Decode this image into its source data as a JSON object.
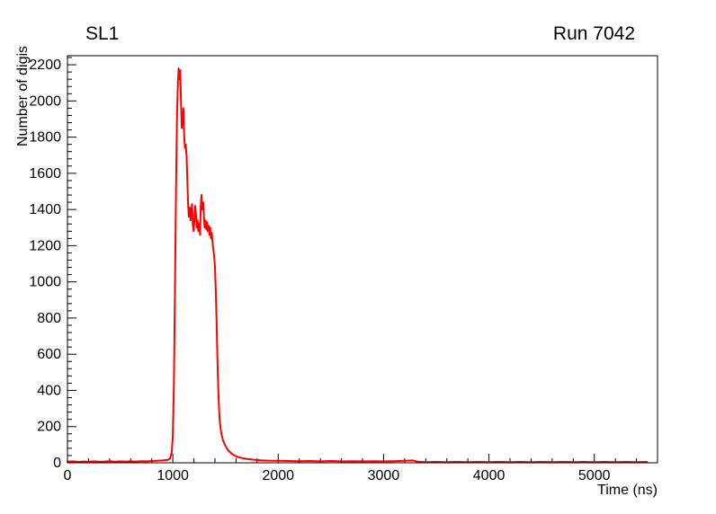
{
  "header": {
    "title_left": "SL1",
    "title_right": "Run 7042"
  },
  "chart_data": {
    "type": "line",
    "title": "SL1",
    "annotation": "Run 7042",
    "xlabel": "Time (ns)",
    "ylabel": "Number of digis",
    "xlim": [
      0,
      5600
    ],
    "ylim": [
      0,
      2250
    ],
    "x_major_ticks": [
      0,
      1000,
      2000,
      3000,
      4000,
      5000
    ],
    "x_minor_step": 200,
    "y_major_ticks": [
      0,
      200,
      400,
      600,
      800,
      1000,
      1200,
      1400,
      1600,
      1800,
      2000,
      2200
    ],
    "y_minor_step": 40,
    "line_color": "#ff0000",
    "grid": false,
    "legend": "none",
    "points": [
      [
        0,
        6
      ],
      [
        50,
        8
      ],
      [
        100,
        5
      ],
      [
        150,
        7
      ],
      [
        200,
        6
      ],
      [
        250,
        8
      ],
      [
        300,
        6
      ],
      [
        350,
        7
      ],
      [
        400,
        9
      ],
      [
        450,
        6
      ],
      [
        500,
        8
      ],
      [
        550,
        7
      ],
      [
        600,
        8
      ],
      [
        650,
        7
      ],
      [
        700,
        9
      ],
      [
        750,
        8
      ],
      [
        800,
        10
      ],
      [
        850,
        11
      ],
      [
        900,
        13
      ],
      [
        950,
        16
      ],
      [
        975,
        25
      ],
      [
        990,
        60
      ],
      [
        1000,
        150
      ],
      [
        1010,
        420
      ],
      [
        1020,
        950
      ],
      [
        1030,
        1520
      ],
      [
        1040,
        1920
      ],
      [
        1048,
        2100
      ],
      [
        1055,
        2180
      ],
      [
        1062,
        2120
      ],
      [
        1070,
        2170
      ],
      [
        1078,
        1980
      ],
      [
        1085,
        1850
      ],
      [
        1092,
        1900
      ],
      [
        1100,
        1960
      ],
      [
        1108,
        1800
      ],
      [
        1115,
        1740
      ],
      [
        1122,
        1760
      ],
      [
        1130,
        1700
      ],
      [
        1138,
        1560
      ],
      [
        1145,
        1430
      ],
      [
        1152,
        1360
      ],
      [
        1160,
        1410
      ],
      [
        1168,
        1340
      ],
      [
        1175,
        1390
      ],
      [
        1182,
        1430
      ],
      [
        1190,
        1310
      ],
      [
        1198,
        1280
      ],
      [
        1205,
        1350
      ],
      [
        1212,
        1420
      ],
      [
        1220,
        1370
      ],
      [
        1228,
        1300
      ],
      [
        1235,
        1340
      ],
      [
        1242,
        1280
      ],
      [
        1250,
        1320
      ],
      [
        1258,
        1260
      ],
      [
        1265,
        1420
      ],
      [
        1272,
        1480
      ],
      [
        1280,
        1400
      ],
      [
        1288,
        1440
      ],
      [
        1295,
        1360
      ],
      [
        1302,
        1300
      ],
      [
        1310,
        1340
      ],
      [
        1318,
        1290
      ],
      [
        1325,
        1330
      ],
      [
        1332,
        1280
      ],
      [
        1340,
        1310
      ],
      [
        1348,
        1260
      ],
      [
        1355,
        1300
      ],
      [
        1362,
        1240
      ],
      [
        1370,
        1270
      ],
      [
        1378,
        1210
      ],
      [
        1385,
        1180
      ],
      [
        1392,
        1140
      ],
      [
        1400,
        1080
      ],
      [
        1408,
        950
      ],
      [
        1415,
        780
      ],
      [
        1422,
        600
      ],
      [
        1430,
        430
      ],
      [
        1438,
        300
      ],
      [
        1445,
        230
      ],
      [
        1455,
        185
      ],
      [
        1465,
        150
      ],
      [
        1475,
        125
      ],
      [
        1490,
        105
      ],
      [
        1505,
        88
      ],
      [
        1520,
        72
      ],
      [
        1540,
        60
      ],
      [
        1560,
        50
      ],
      [
        1580,
        42
      ],
      [
        1600,
        36
      ],
      [
        1630,
        30
      ],
      [
        1660,
        26
      ],
      [
        1700,
        22
      ],
      [
        1750,
        18
      ],
      [
        1800,
        15
      ],
      [
        1850,
        13
      ],
      [
        1900,
        12
      ],
      [
        1950,
        11
      ],
      [
        2000,
        11
      ],
      [
        2100,
        10
      ],
      [
        2200,
        9
      ],
      [
        2300,
        10
      ],
      [
        2400,
        8
      ],
      [
        2500,
        10
      ],
      [
        2600,
        8
      ],
      [
        2700,
        9
      ],
      [
        2800,
        8
      ],
      [
        2900,
        9
      ],
      [
        3000,
        8
      ],
      [
        3100,
        9
      ],
      [
        3200,
        11
      ],
      [
        3280,
        13
      ],
      [
        3320,
        6
      ],
      [
        3400,
        4
      ],
      [
        3500,
        5
      ],
      [
        3600,
        4
      ],
      [
        3700,
        5
      ],
      [
        3800,
        4
      ],
      [
        3900,
        5
      ],
      [
        4000,
        4
      ],
      [
        4100,
        5
      ],
      [
        4200,
        4
      ],
      [
        4300,
        5
      ],
      [
        4400,
        4
      ],
      [
        4500,
        5
      ],
      [
        4600,
        4
      ],
      [
        4700,
        5
      ],
      [
        4800,
        4
      ],
      [
        4900,
        5
      ],
      [
        5000,
        4
      ],
      [
        5100,
        5
      ],
      [
        5200,
        4
      ],
      [
        5300,
        5
      ],
      [
        5400,
        4
      ],
      [
        5500,
        5
      ]
    ]
  }
}
